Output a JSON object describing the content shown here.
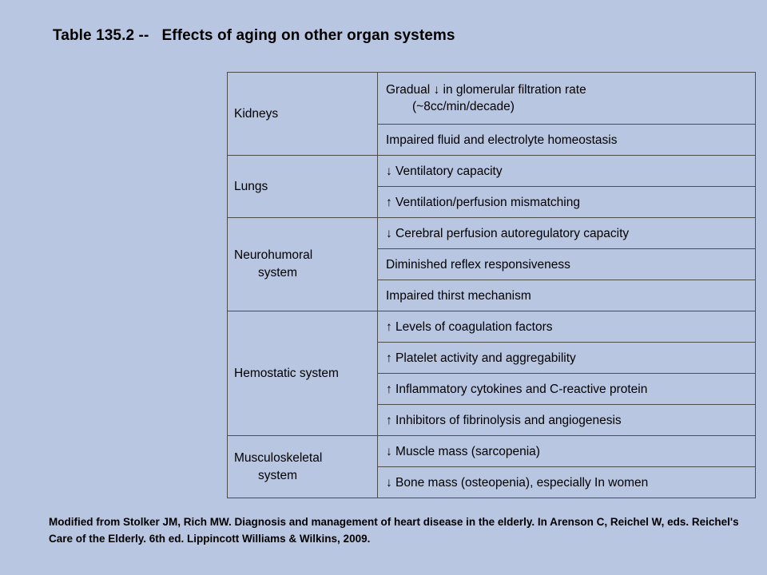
{
  "title": "Table 135.2 --   Effects of aging on other organ systems",
  "rows": [
    {
      "system_lines": [
        "Kidneys"
      ],
      "effects": [
        [
          "Gradual ↓ in glomerular filtration rate",
          "(~8cc/min/decade)"
        ],
        [
          "Impaired fluid and electrolyte homeostasis"
        ]
      ]
    },
    {
      "system_lines": [
        "Lungs"
      ],
      "effects": [
        [
          "↓ Ventilatory capacity"
        ],
        [
          "↑ Ventilation/perfusion mismatching"
        ]
      ]
    },
    {
      "system_lines": [
        "Neurohumoral",
        "system"
      ],
      "effects": [
        [
          "↓ Cerebral perfusion autoregulatory capacity"
        ],
        [
          "Diminished reflex responsiveness"
        ],
        [
          "Impaired thirst mechanism"
        ]
      ]
    },
    {
      "system_lines": [
        "Hemostatic system"
      ],
      "effects": [
        [
          "↑ Levels of coagulation factors"
        ],
        [
          "↑ Platelet activity and aggregability"
        ],
        [
          "↑ Inflammatory cytokines and C-reactive protein"
        ],
        [
          "↑ Inhibitors of fibrinolysis and angiogenesis"
        ]
      ]
    },
    {
      "system_lines": [
        "Musculoskeletal",
        "system"
      ],
      "effects": [
        [
          "↓ Muscle mass (sarcopenia)"
        ],
        [
          "↓ Bone mass (osteopenia), especially In women"
        ]
      ]
    }
  ],
  "footer": "Modified from Stolker JM, Rich MW. Diagnosis and management of heart disease in the elderly. In Arenson C, Reichel W, eds. Reichel's Care of the Elderly. 6th ed. Lippincott Williams & Wilkins, 2009."
}
